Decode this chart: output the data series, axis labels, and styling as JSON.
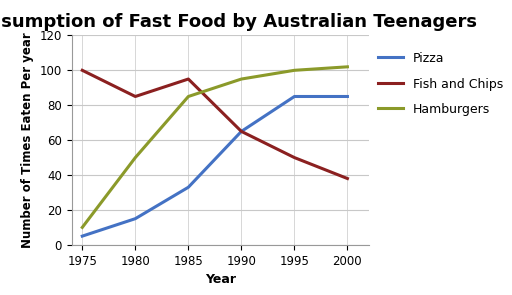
{
  "title": "Consumption of Fast Food by Australian Teenagers",
  "xlabel": "Year",
  "ylabel": "Number of Times Eaten Per year",
  "years": [
    1975,
    1980,
    1985,
    1990,
    1995,
    2000
  ],
  "pizza": [
    5,
    15,
    33,
    65,
    85,
    85
  ],
  "fish_and_chips": [
    100,
    85,
    95,
    65,
    50,
    38
  ],
  "hamburgers": [
    10,
    50,
    85,
    95,
    100,
    102
  ],
  "pizza_color": "#4472c4",
  "fish_color": "#8b2020",
  "hamburgers_color": "#8b9a2a",
  "ylim": [
    0,
    120
  ],
  "yticks": [
    0,
    20,
    40,
    60,
    80,
    100,
    120
  ],
  "xlim": [
    1974,
    2002
  ],
  "xticks": [
    1975,
    1980,
    1985,
    1990,
    1995,
    2000
  ],
  "legend_labels": [
    "Pizza",
    "Fish and Chips",
    "Hamburgers"
  ],
  "background_color": "#ffffff",
  "grid_color": "#c8c8c8",
  "title_fontsize": 13,
  "label_fontsize": 9,
  "tick_fontsize": 8.5,
  "legend_fontsize": 9,
  "line_width": 2.2
}
